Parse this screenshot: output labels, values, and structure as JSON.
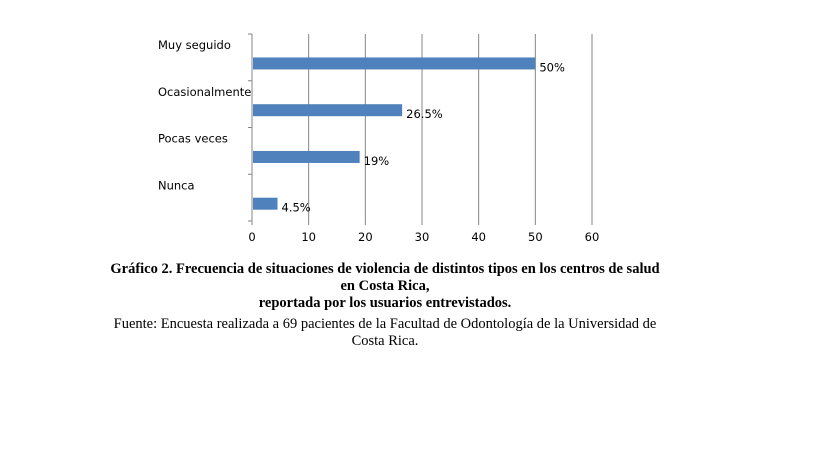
{
  "chart_data": {
    "type": "bar",
    "orientation": "horizontal",
    "categories": [
      "Muy seguido",
      "Ocasionalmente",
      "Pocas veces",
      "Nunca"
    ],
    "values": [
      50,
      26.5,
      19,
      4.5
    ],
    "value_labels": [
      "50%",
      "26.5%",
      "19%",
      "4.5%"
    ],
    "xlim": [
      0,
      60
    ],
    "x_ticks": [
      "0",
      "10",
      "20",
      "30",
      "40",
      "50",
      "60"
    ],
    "grid": "vertical",
    "bar_color": "#4f81bd"
  },
  "caption": {
    "title_line1": "Gráfico 2. Frecuencia de situaciones de violencia de distintos tipos en los centros de salud",
    "title_line2": "en Costa Rica,",
    "title_line3": "reportada por los usuarios entrevistados.",
    "source_line1": "Fuente: Encuesta realizada a 69 pacientes de la Facultad de Odontología de la Universidad de",
    "source_line2": "Costa Rica."
  }
}
